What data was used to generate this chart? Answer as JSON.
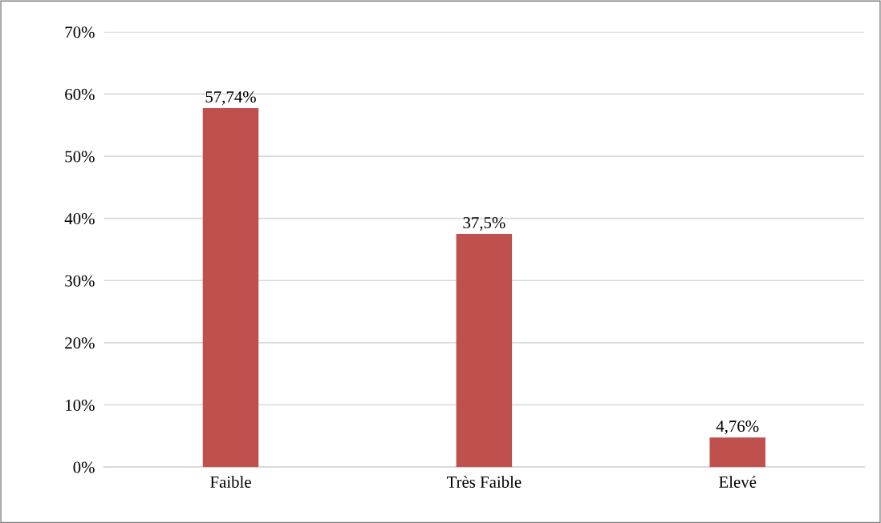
{
  "chart_data": {
    "type": "bar",
    "categories": [
      "Faible",
      "Très Faible",
      "Elevé"
    ],
    "values": [
      57.74,
      37.5,
      4.76
    ],
    "color": "#c0504d",
    "value_labels": [
      "57,74%",
      "37,5%",
      "4,76%"
    ],
    "ylim": [
      0,
      70
    ],
    "yticks": [
      {
        "value": 0,
        "label": "0%"
      },
      {
        "value": 10,
        "label": "10%"
      },
      {
        "value": 20,
        "label": "20%"
      },
      {
        "value": 30,
        "label": "30%"
      },
      {
        "value": 40,
        "label": "40%"
      },
      {
        "value": 50,
        "label": "50%"
      },
      {
        "value": 60,
        "label": "60%"
      },
      {
        "value": 70,
        "label": "70%"
      }
    ],
    "grid": "y",
    "legend": false
  }
}
